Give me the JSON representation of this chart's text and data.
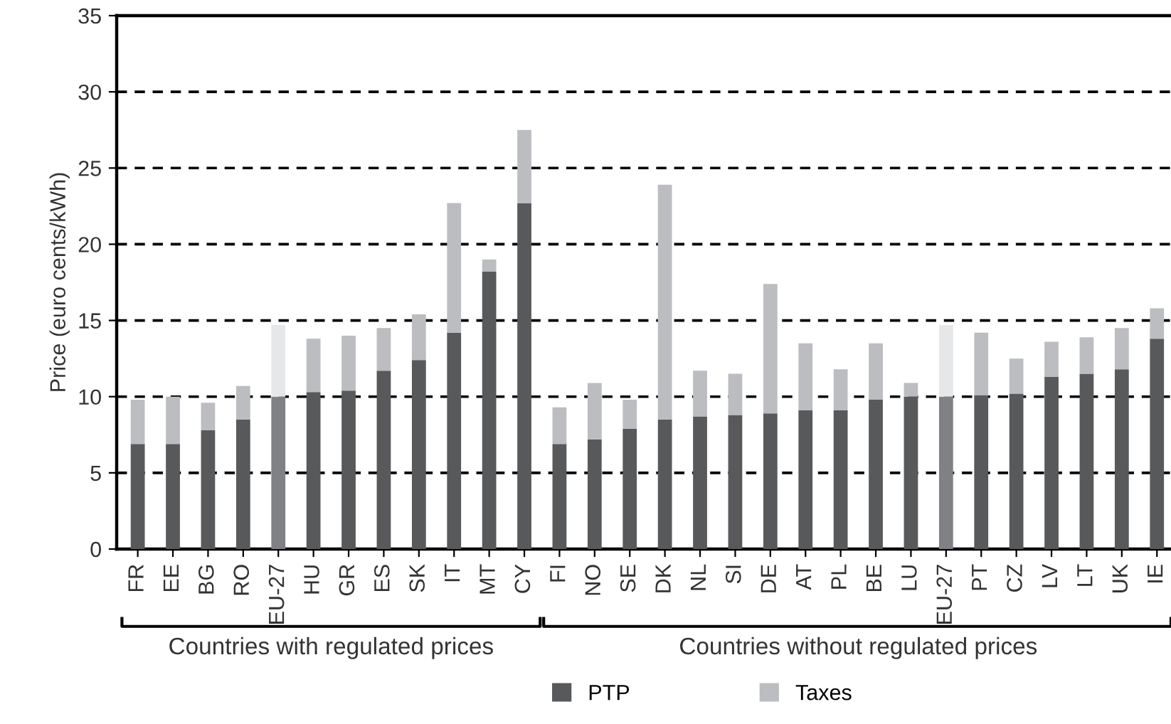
{
  "chart_data": {
    "type": "bar",
    "stacked": true,
    "ylabel": "Price (euro cents/kWh)",
    "categories": [
      "FR",
      "EE",
      "BG",
      "RO",
      "EU-27",
      "HU",
      "GR",
      "ES",
      "SK",
      "IT",
      "MT",
      "CY",
      "FI",
      "NO",
      "SE",
      "DK",
      "NL",
      "SI",
      "DE",
      "AT",
      "PL",
      "BE",
      "LU",
      "EU-27",
      "PT",
      "CZ",
      "LV",
      "LT",
      "UK",
      "IE"
    ],
    "series": [
      {
        "name": "PTP",
        "color": "#58595b",
        "colors": [
          "#58595b",
          "#58595b",
          "#58595b",
          "#58595b",
          "#808184",
          "#58595b",
          "#58595b",
          "#58595b",
          "#58595b",
          "#58595b",
          "#58595b",
          "#58595b",
          "#58595b",
          "#58595b",
          "#58595b",
          "#58595b",
          "#58595b",
          "#58595b",
          "#58595b",
          "#58595b",
          "#58595b",
          "#58595b",
          "#58595b",
          "#808184",
          "#58595b",
          "#58595b",
          "#58595b",
          "#58595b",
          "#58595b",
          "#58595b"
        ],
        "values": [
          6.9,
          6.9,
          7.8,
          8.5,
          10.0,
          10.3,
          10.4,
          11.7,
          12.4,
          14.2,
          18.2,
          22.7,
          6.9,
          7.2,
          7.9,
          8.5,
          8.7,
          8.8,
          8.9,
          9.1,
          9.1,
          9.8,
          10.0,
          10.0,
          10.1,
          10.2,
          11.3,
          11.5,
          11.8,
          13.8
        ]
      },
      {
        "name": "Taxes",
        "color": "#bcbdc0",
        "colors": [
          "#bcbdc0",
          "#bcbdc0",
          "#bcbdc0",
          "#bcbdc0",
          "#e6e7e8",
          "#bcbdc0",
          "#bcbdc0",
          "#bcbdc0",
          "#bcbdc0",
          "#bcbdc0",
          "#bcbdc0",
          "#bcbdc0",
          "#bcbdc0",
          "#bcbdc0",
          "#bcbdc0",
          "#bcbdc0",
          "#bcbdc0",
          "#bcbdc0",
          "#bcbdc0",
          "#bcbdc0",
          "#bcbdc0",
          "#bcbdc0",
          "#bcbdc0",
          "#e6e7e8",
          "#bcbdc0",
          "#bcbdc0",
          "#bcbdc0",
          "#bcbdc0",
          "#bcbdc0",
          "#bcbdc0"
        ],
        "values": [
          2.9,
          3.1,
          1.8,
          2.2,
          4.7,
          3.5,
          3.6,
          2.8,
          3.0,
          8.5,
          0.8,
          4.8,
          2.4,
          3.7,
          1.9,
          15.4,
          3.0,
          2.7,
          8.5,
          4.4,
          2.7,
          3.7,
          0.9,
          4.7,
          4.1,
          2.3,
          2.3,
          2.4,
          2.7,
          2.0
        ]
      }
    ],
    "ylim": [
      0,
      35
    ],
    "yticks": [
      0,
      5,
      10,
      15,
      20,
      25,
      30,
      35
    ],
    "grid": "y",
    "legend": "bottom",
    "annotations": [
      "Countries with regulated prices",
      "Countries without regulated prices"
    ]
  }
}
